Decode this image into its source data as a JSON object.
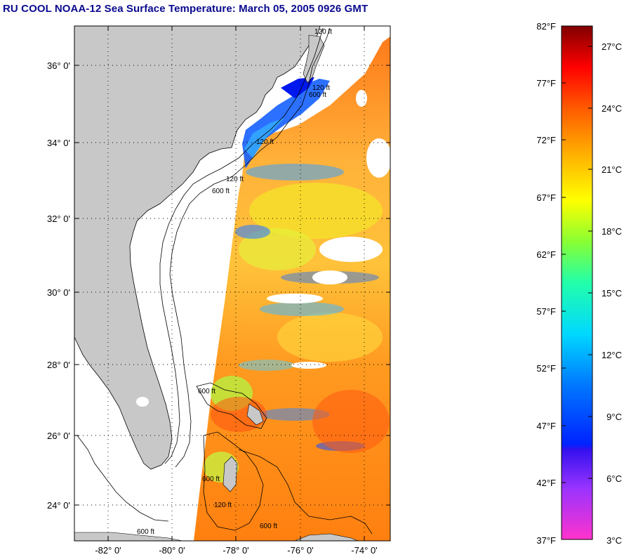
{
  "title": "RU COOL  NOAA-12  Sea Surface Temperature:  March 05, 2005 0926 GMT",
  "map": {
    "lat_ticks": [
      "36° 0'",
      "34° 0'",
      "32° 0'",
      "30° 0'",
      "28° 0'",
      "26° 0'",
      "24° 0'"
    ],
    "lon_ticks": [
      "-82° 0'",
      "-80° 0'",
      "-78° 0'",
      "-76° 0'",
      "-74° 0'"
    ],
    "contour_labels": [
      "120 ft",
      "600 ft",
      "120 ft",
      "600 ft",
      "600 ft",
      "120 ft",
      "600 ft",
      "120 ft",
      "600 ft",
      "600 ft",
      "120 ft"
    ],
    "colors": {
      "land": "#c8c8c8",
      "ocean_nodata": "#ffffff",
      "frame": "#000000",
      "title": "#0a0a8f"
    }
  },
  "colorbar": {
    "fahrenheit_labels": [
      "82°F",
      "77°F",
      "72°F",
      "67°F",
      "62°F",
      "57°F",
      "52°F",
      "47°F",
      "42°F",
      "37°F"
    ],
    "celsius_labels": [
      "27°C",
      "24°C",
      "21°C",
      "18°C",
      "15°C",
      "12°C",
      "9°C",
      "6°C",
      "3°C"
    ],
    "fahrenheit_range": [
      37,
      82
    ],
    "celsius_range": [
      3,
      27
    ]
  }
}
